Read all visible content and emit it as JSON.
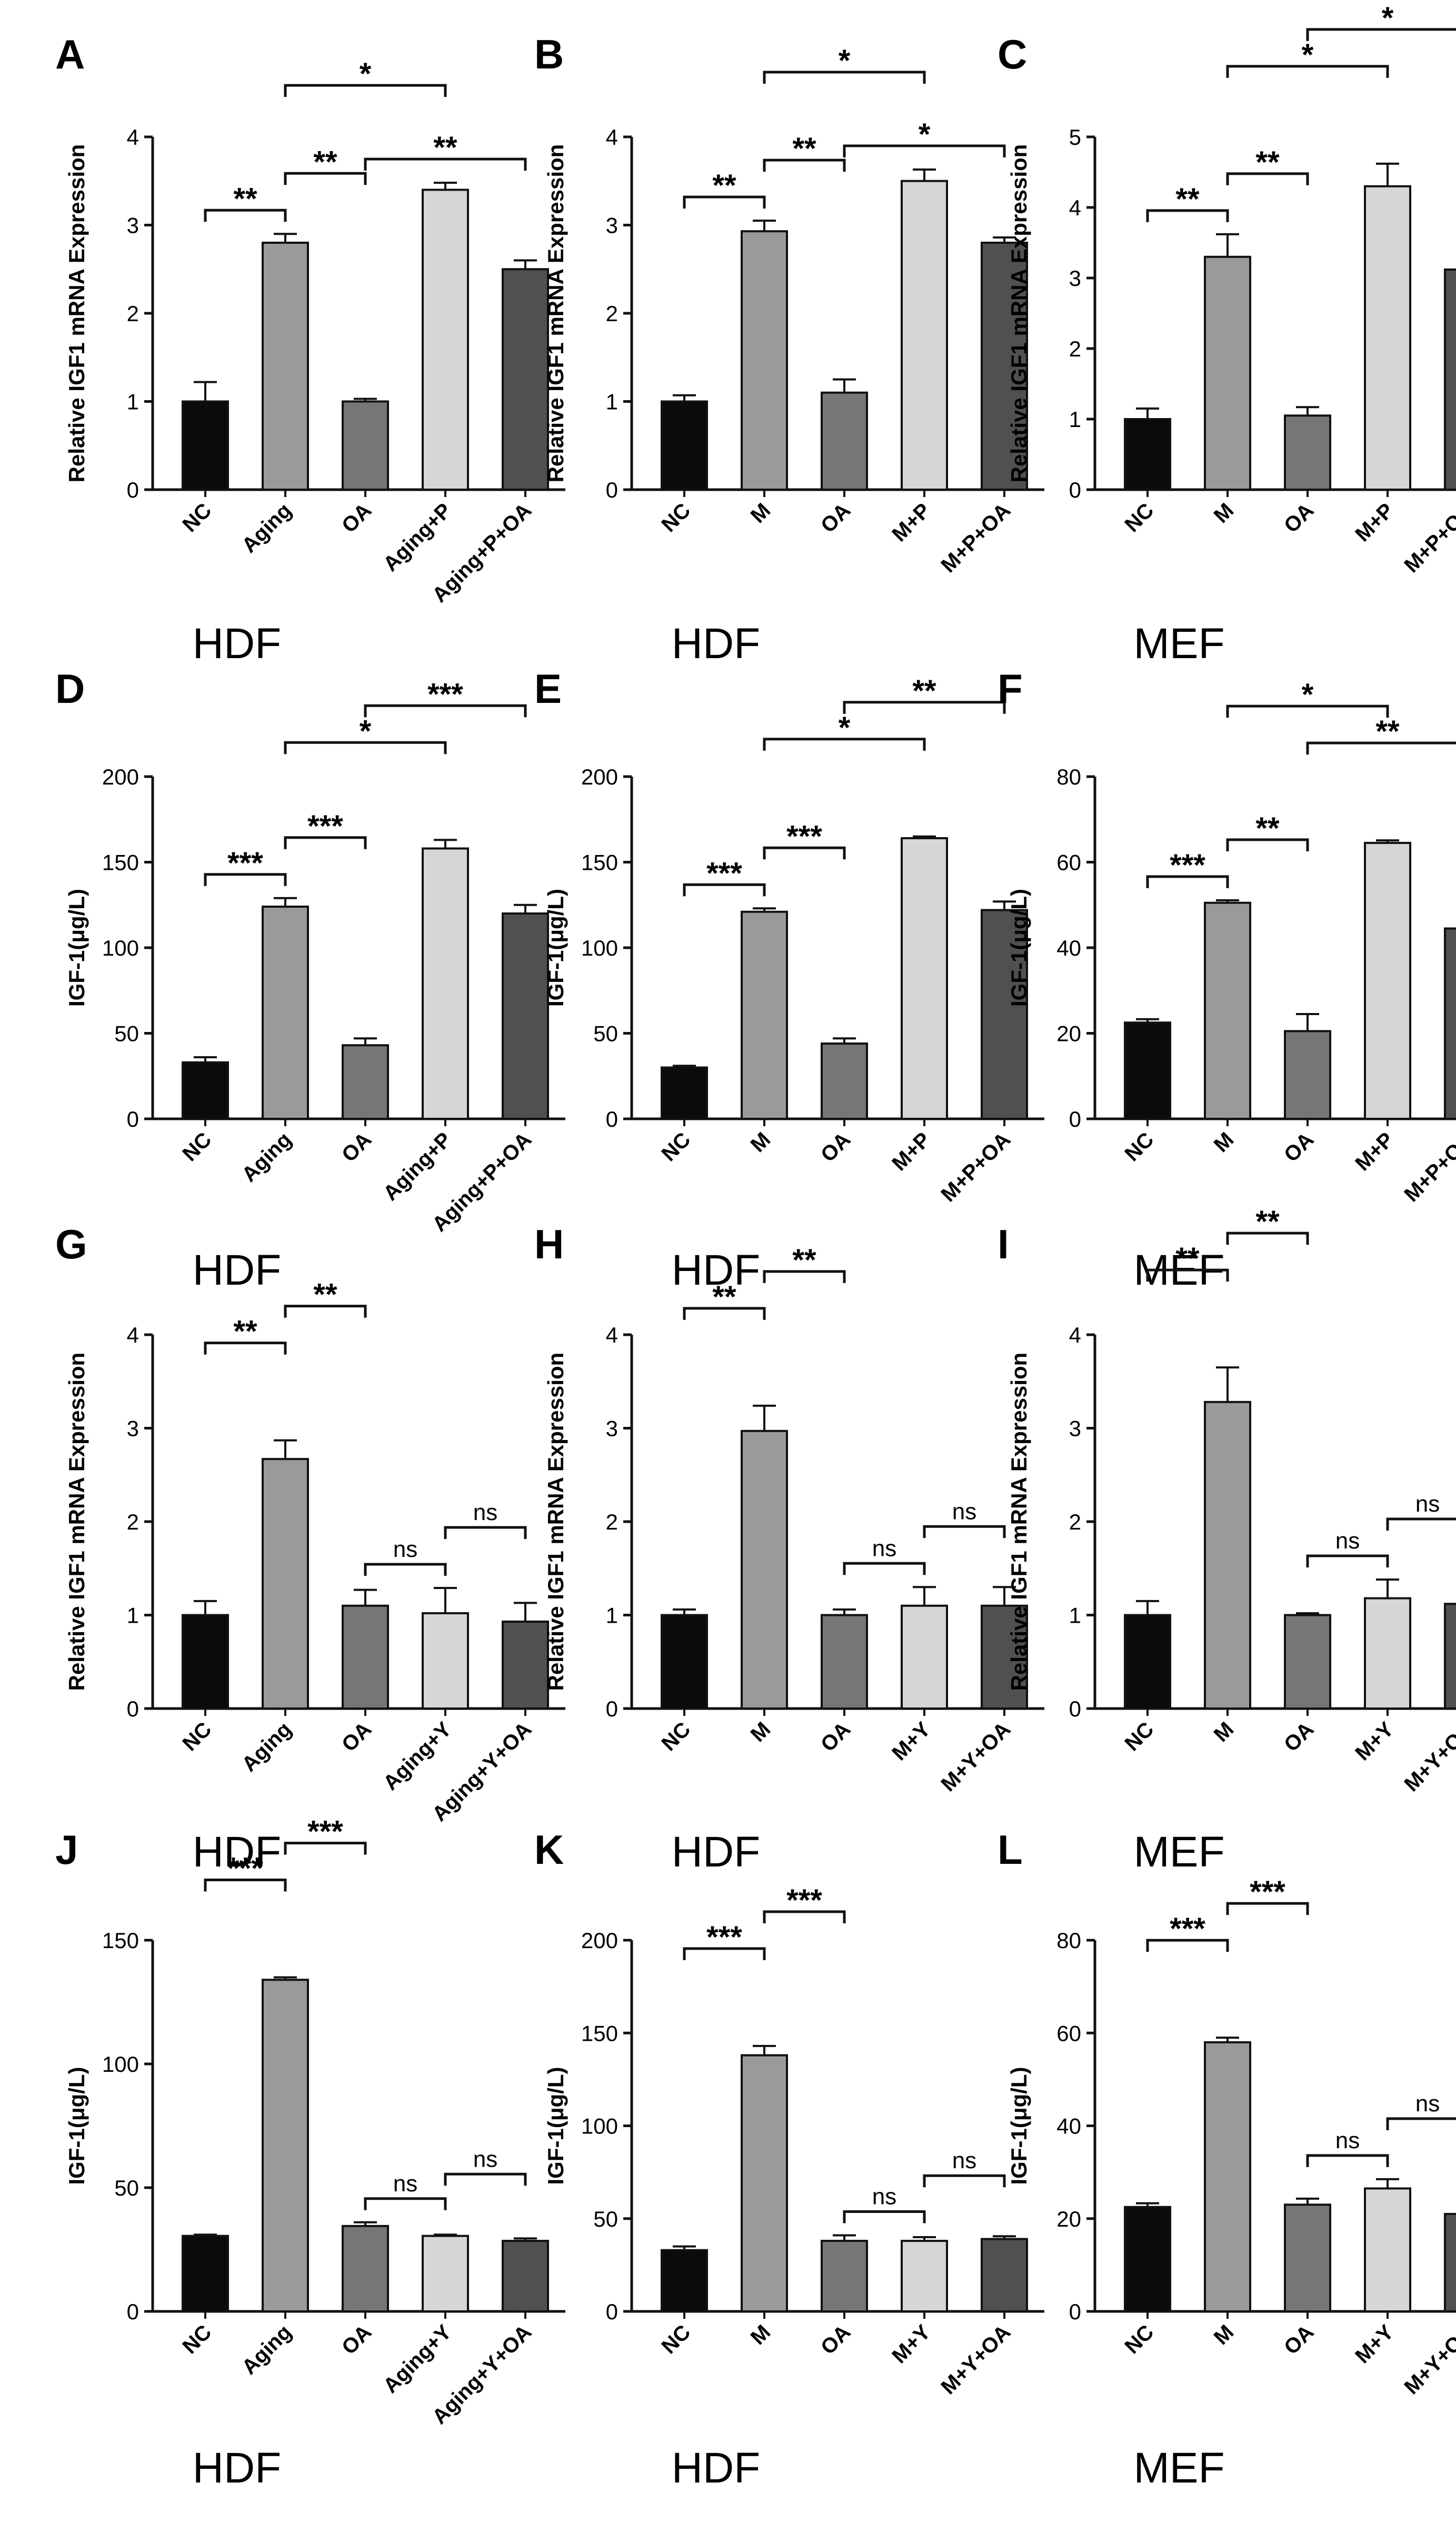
{
  "figure": {
    "colors": {
      "NC": "#0b0b0b",
      "treat": "#9a9a9a",
      "OA": "#767676",
      "combo": "#d6d6d6",
      "comboOA": "#505050",
      "axis": "#111111"
    }
  },
  "chart_data": [
    {
      "panel": "A",
      "type": "bar",
      "cell": "HDF",
      "ylabel": "Relative IGF1 mRNA Expression",
      "categories": [
        "NC",
        "Aging",
        "OA",
        "Aging+P",
        "Aging+P+OA"
      ],
      "values": [
        1.0,
        2.8,
        1.0,
        3.4,
        2.5
      ],
      "errors": [
        0.22,
        0.1,
        0.03,
        0.08,
        0.1
      ],
      "ylim": [
        0,
        4
      ],
      "yticks": [
        0,
        1,
        2,
        3,
        4
      ],
      "brackets": [
        {
          "from": 0,
          "to": 1,
          "level": 0,
          "label": "**"
        },
        {
          "from": 1,
          "to": 2,
          "level": 1,
          "label": "**"
        },
        {
          "from": 2,
          "to": 4,
          "level": 0,
          "label": "**"
        },
        {
          "from": 1,
          "to": 3,
          "level": 2,
          "label": "*"
        }
      ]
    },
    {
      "panel": "B",
      "type": "bar",
      "cell": "HDF",
      "ylabel": "Relative IGF1 mRNA Expression",
      "categories": [
        "NC",
        "M",
        "OA",
        "M+P",
        "M+P+OA"
      ],
      "values": [
        1.0,
        2.93,
        1.1,
        3.5,
        2.8
      ],
      "errors": [
        0.07,
        0.12,
        0.15,
        0.13,
        0.06
      ],
      "ylim": [
        0,
        4
      ],
      "yticks": [
        0,
        1,
        2,
        3,
        4
      ],
      "brackets": [
        {
          "from": 0,
          "to": 1,
          "level": 0,
          "label": "**"
        },
        {
          "from": 1,
          "to": 2,
          "level": 1,
          "label": "**"
        },
        {
          "from": 2,
          "to": 4,
          "level": 0,
          "label": "*"
        },
        {
          "from": 1,
          "to": 3,
          "level": 2,
          "label": "*"
        }
      ]
    },
    {
      "panel": "C",
      "type": "bar",
      "cell": "MEF",
      "ylabel": "Relative IGF1 mRNA Expression",
      "categories": [
        "NC",
        "M",
        "OA",
        "M+P",
        "M+P+OA"
      ],
      "values": [
        1.0,
        3.3,
        1.05,
        4.3,
        3.12
      ],
      "errors": [
        0.15,
        0.32,
        0.12,
        0.32,
        0.1
      ],
      "ylim": [
        0,
        5
      ],
      "yticks": [
        0,
        1,
        2,
        3,
        4,
        5
      ],
      "brackets": [
        {
          "from": 0,
          "to": 1,
          "level": 0,
          "label": "**"
        },
        {
          "from": 1,
          "to": 2,
          "level": 1,
          "label": "**"
        },
        {
          "from": 1,
          "to": 3,
          "level": 2,
          "label": "*"
        },
        {
          "from": 2,
          "to": 4,
          "level": 3,
          "label": "*"
        }
      ]
    },
    {
      "panel": "D",
      "type": "bar",
      "cell": "HDF",
      "ylabel": "IGF-1(μg/L)",
      "categories": [
        "NC",
        "Aging",
        "OA",
        "Aging+P",
        "Aging+P+OA"
      ],
      "values": [
        33,
        124,
        43,
        158,
        120
      ],
      "errors": [
        3,
        5,
        4,
        5,
        5
      ],
      "ylim": [
        0,
        200
      ],
      "yticks": [
        0,
        50,
        100,
        150,
        200
      ],
      "brackets": [
        {
          "from": 0,
          "to": 1,
          "level": 0,
          "label": "***"
        },
        {
          "from": 1,
          "to": 2,
          "level": 1,
          "label": "***"
        },
        {
          "from": 1,
          "to": 3,
          "level": 2,
          "label": "*"
        },
        {
          "from": 2,
          "to": 4,
          "level": 3,
          "label": "***"
        }
      ]
    },
    {
      "panel": "E",
      "type": "bar",
      "cell": "HDF",
      "ylabel": "IGF-1(μg/L)",
      "categories": [
        "NC",
        "M",
        "OA",
        "M+P",
        "M+P+OA"
      ],
      "values": [
        30,
        121,
        44,
        164,
        122
      ],
      "errors": [
        1,
        2,
        3,
        1,
        5
      ],
      "ylim": [
        0,
        200
      ],
      "yticks": [
        0,
        50,
        100,
        150,
        200
      ],
      "brackets": [
        {
          "from": 0,
          "to": 1,
          "level": 0,
          "label": "***"
        },
        {
          "from": 1,
          "to": 2,
          "level": 1,
          "label": "***"
        },
        {
          "from": 1,
          "to": 3,
          "level": 2,
          "label": "*"
        },
        {
          "from": 2,
          "to": 4,
          "level": 3,
          "label": "**"
        }
      ]
    },
    {
      "panel": "F",
      "type": "bar",
      "cell": "MEF",
      "ylabel": "IGF-1(μg/L)",
      "categories": [
        "NC",
        "M",
        "OA",
        "M+P",
        "M+P+OA"
      ],
      "values": [
        22.5,
        50.5,
        20.5,
        64.5,
        44.5
      ],
      "errors": [
        0.8,
        0.6,
        4,
        0.6,
        0.7
      ],
      "ylim": [
        0,
        80
      ],
      "yticks": [
        0,
        20,
        40,
        60,
        80
      ],
      "brackets": [
        {
          "from": 0,
          "to": 1,
          "level": 0,
          "label": "***"
        },
        {
          "from": 1,
          "to": 2,
          "level": 1,
          "label": "**"
        },
        {
          "from": 2,
          "to": 4,
          "level": 2,
          "label": "**"
        },
        {
          "from": 1,
          "to": 3,
          "level": 3,
          "label": "*"
        }
      ]
    },
    {
      "panel": "G",
      "type": "bar",
      "cell": "HDF",
      "ylabel": "Relative IGF1 mRNA Expression",
      "categories": [
        "NC",
        "Aging",
        "OA",
        "Aging+Y",
        "Aging+Y+OA"
      ],
      "values": [
        1.0,
        2.67,
        1.1,
        1.02,
        0.93
      ],
      "errors": [
        0.15,
        0.2,
        0.17,
        0.27,
        0.2
      ],
      "ylim": [
        0,
        4
      ],
      "yticks": [
        0,
        1,
        2,
        3,
        4
      ],
      "brackets": [
        {
          "from": 0,
          "to": 1,
          "level": 2,
          "label": "**"
        },
        {
          "from": 1,
          "to": 2,
          "level": 3,
          "label": "**"
        },
        {
          "from": 2,
          "to": 3,
          "level": 0,
          "label": "ns"
        },
        {
          "from": 3,
          "to": 4,
          "level": 1,
          "label": "ns"
        }
      ]
    },
    {
      "panel": "H",
      "type": "bar",
      "cell": "HDF",
      "ylabel": "Relative IGF1 mRNA Expression",
      "categories": [
        "NC",
        "M",
        "OA",
        "M+Y",
        "M+Y+OA"
      ],
      "values": [
        1.0,
        2.97,
        1.0,
        1.1,
        1.1
      ],
      "errors": [
        0.06,
        0.27,
        0.06,
        0.2,
        0.2
      ],
      "ylim": [
        0,
        4
      ],
      "yticks": [
        0,
        1,
        2,
        3,
        4
      ],
      "brackets": [
        {
          "from": 0,
          "to": 1,
          "level": 2,
          "label": "**"
        },
        {
          "from": 1,
          "to": 2,
          "level": 3,
          "label": "**"
        },
        {
          "from": 2,
          "to": 3,
          "level": 0,
          "label": "ns"
        },
        {
          "from": 3,
          "to": 4,
          "level": 1,
          "label": "ns"
        }
      ]
    },
    {
      "panel": "I",
      "type": "bar",
      "cell": "MEF",
      "ylabel": "Relative IGF1 mRNA Expression",
      "categories": [
        "NC",
        "M",
        "OA",
        "M+Y",
        "M+Y+OA"
      ],
      "values": [
        1.0,
        3.28,
        1.0,
        1.18,
        1.12
      ],
      "errors": [
        0.15,
        0.37,
        0.02,
        0.2,
        0.1
      ],
      "ylim": [
        0,
        4
      ],
      "yticks": [
        0,
        1,
        2,
        3,
        4
      ],
      "brackets": [
        {
          "from": 0,
          "to": 1,
          "level": 2,
          "label": "**"
        },
        {
          "from": 1,
          "to": 2,
          "level": 3,
          "label": "**"
        },
        {
          "from": 2,
          "to": 3,
          "level": 0,
          "label": "ns"
        },
        {
          "from": 3,
          "to": 4,
          "level": 1,
          "label": "ns"
        }
      ]
    },
    {
      "panel": "J",
      "type": "bar",
      "cell": "HDF",
      "ylabel": "IGF-1(μg/L)",
      "categories": [
        "NC",
        "Aging",
        "OA",
        "Aging+Y",
        "Aging+Y+OA"
      ],
      "values": [
        30.5,
        134,
        34.5,
        30.5,
        28.5
      ],
      "errors": [
        0.5,
        1,
        1.5,
        0.5,
        1
      ],
      "ylim": [
        0,
        150
      ],
      "yticks": [
        0,
        50,
        100,
        150
      ],
      "brackets": [
        {
          "from": 0,
          "to": 1,
          "level": 2,
          "label": "***"
        },
        {
          "from": 1,
          "to": 2,
          "level": 3,
          "label": "***"
        },
        {
          "from": 2,
          "to": 3,
          "level": 0,
          "label": "ns"
        },
        {
          "from": 3,
          "to": 4,
          "level": 1,
          "label": "ns"
        }
      ]
    },
    {
      "panel": "K",
      "type": "bar",
      "cell": "HDF",
      "ylabel": "IGF-1(μg/L)",
      "categories": [
        "NC",
        "M",
        "OA",
        "M+Y",
        "M+Y+OA"
      ],
      "values": [
        33,
        138,
        38,
        38,
        39
      ],
      "errors": [
        2,
        5,
        3,
        2,
        1.5
      ],
      "ylim": [
        0,
        200
      ],
      "yticks": [
        0,
        50,
        100,
        150,
        200
      ],
      "brackets": [
        {
          "from": 0,
          "to": 1,
          "level": 2,
          "label": "***"
        },
        {
          "from": 1,
          "to": 2,
          "level": 3,
          "label": "***"
        },
        {
          "from": 2,
          "to": 3,
          "level": 0,
          "label": "ns"
        },
        {
          "from": 3,
          "to": 4,
          "level": 1,
          "label": "ns"
        }
      ]
    },
    {
      "panel": "L",
      "type": "bar",
      "cell": "MEF",
      "ylabel": "IGF-1(μg/L)",
      "categories": [
        "NC",
        "M",
        "OA",
        "M+Y",
        "M+Y+OA"
      ],
      "values": [
        22.5,
        58,
        23,
        26.5,
        21
      ],
      "errors": [
        0.8,
        1,
        1.3,
        2,
        0.4
      ],
      "ylim": [
        0,
        80
      ],
      "yticks": [
        0,
        20,
        40,
        60,
        80
      ],
      "brackets": [
        {
          "from": 0,
          "to": 1,
          "level": 2,
          "label": "***"
        },
        {
          "from": 1,
          "to": 2,
          "level": 3,
          "label": "***"
        },
        {
          "from": 2,
          "to": 3,
          "level": 0,
          "label": "ns"
        },
        {
          "from": 3,
          "to": 4,
          "level": 1,
          "label": "ns"
        }
      ]
    }
  ]
}
